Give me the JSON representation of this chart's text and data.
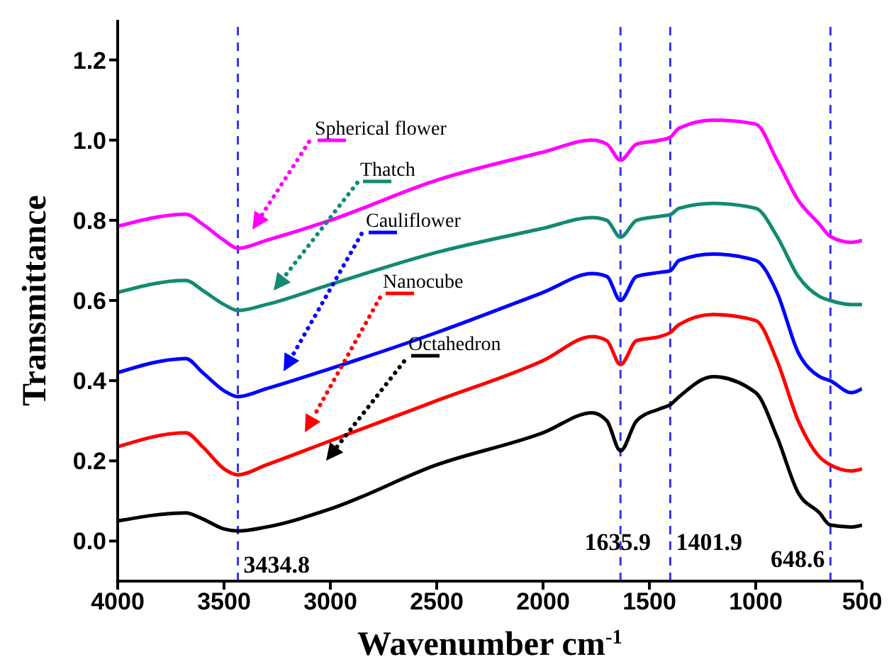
{
  "chart_data": {
    "type": "line",
    "xlabel": "Wavenumber cm$^{-1}$",
    "ylabel": "Transmittance",
    "x": [
      4000,
      3680,
      3600,
      3500,
      3435,
      3300,
      3000,
      2500,
      2000,
      1769,
      1700,
      1636,
      1560,
      1450,
      1402,
      1360,
      1200,
      1000,
      900,
      800,
      700,
      650,
      550,
      500
    ],
    "series": [
      {
        "name": "Spherical flower",
        "color": "#ff00ff",
        "values": [
          0.785,
          0.815,
          0.79,
          0.75,
          0.73,
          0.75,
          0.8,
          0.9,
          0.97,
          1.0,
          0.99,
          0.95,
          0.99,
          1.0,
          1.007,
          1.03,
          1.05,
          1.04,
          0.95,
          0.85,
          0.79,
          0.76,
          0.745,
          0.75
        ]
      },
      {
        "name": "Thatch",
        "color": "#138a72",
        "values": [
          0.62,
          0.65,
          0.625,
          0.59,
          0.575,
          0.59,
          0.64,
          0.72,
          0.78,
          0.807,
          0.8,
          0.758,
          0.8,
          0.81,
          0.814,
          0.83,
          0.842,
          0.83,
          0.76,
          0.66,
          0.61,
          0.6,
          0.59,
          0.59
        ]
      },
      {
        "name": "Cauliflower",
        "color": "#0000ff",
        "values": [
          0.42,
          0.455,
          0.42,
          0.375,
          0.36,
          0.38,
          0.43,
          0.52,
          0.62,
          0.667,
          0.66,
          0.6,
          0.66,
          0.67,
          0.674,
          0.7,
          0.716,
          0.7,
          0.62,
          0.47,
          0.41,
          0.4,
          0.37,
          0.38
        ]
      },
      {
        "name": "Nanocube",
        "color": "#ff0000",
        "values": [
          0.235,
          0.27,
          0.235,
          0.18,
          0.165,
          0.19,
          0.25,
          0.35,
          0.45,
          0.51,
          0.5,
          0.44,
          0.5,
          0.51,
          0.52,
          0.54,
          0.565,
          0.55,
          0.45,
          0.3,
          0.21,
          0.19,
          0.175,
          0.18
        ]
      },
      {
        "name": "Octahedron",
        "color": "#000000",
        "values": [
          0.05,
          0.07,
          0.055,
          0.03,
          0.025,
          0.035,
          0.08,
          0.19,
          0.27,
          0.32,
          0.3,
          0.225,
          0.3,
          0.33,
          0.34,
          0.36,
          0.41,
          0.37,
          0.26,
          0.12,
          0.07,
          0.04,
          0.035,
          0.04
        ]
      }
    ],
    "xlim": [
      4000,
      500
    ],
    "xticks": [
      4000,
      3500,
      3000,
      2500,
      2000,
      1500,
      1000,
      500
    ],
    "ylim": [
      -0.1,
      1.3
    ],
    "yticks": [
      {
        "value": 0,
        "label": "0.0"
      },
      0.2,
      0.4,
      0.6,
      0.8,
      {
        "value": 1,
        "label": "1.0"
      },
      1.2
    ],
    "ref_lines": [
      {
        "axis": "x",
        "value": 3434.8,
        "label": "3434.8",
        "color": "#3333ee",
        "line_style": "dashed"
      },
      {
        "axis": "x",
        "value": 1635.9,
        "label": "1635.9",
        "color": "#3333ee",
        "line_style": "dashed"
      },
      {
        "axis": "x",
        "value": 1401.9,
        "label": "1401.9",
        "color": "#3333ee",
        "line_style": "dashed"
      },
      {
        "axis": "x",
        "value": 648.6,
        "label": "648.6",
        "color": "#3333ee",
        "line_style": "dashed"
      }
    ],
    "grid": false,
    "marker": "none",
    "line_style": "solid"
  }
}
